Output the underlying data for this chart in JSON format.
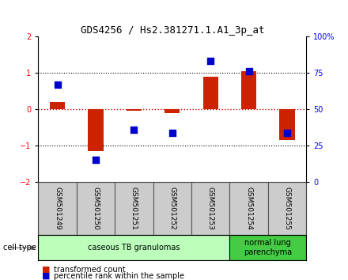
{
  "title": "GDS4256 / Hs2.381271.1.A1_3p_at",
  "samples": [
    "GSM501249",
    "GSM501250",
    "GSM501251",
    "GSM501252",
    "GSM501253",
    "GSM501254",
    "GSM501255"
  ],
  "transformed_counts": [
    0.2,
    -1.15,
    -0.05,
    -0.1,
    0.9,
    1.05,
    -0.85
  ],
  "percentile_ranks_pct": [
    67,
    15,
    36,
    34,
    83,
    76,
    34
  ],
  "left_ylim": [
    -2,
    2
  ],
  "right_ylim": [
    0,
    100
  ],
  "left_yticks": [
    -2,
    -1,
    0,
    1,
    2
  ],
  "right_yticks": [
    0,
    25,
    50,
    75,
    100
  ],
  "right_yticklabels": [
    "0",
    "25",
    "50",
    "75",
    "100%"
  ],
  "cell_types": [
    {
      "label": "caseous TB granulomas",
      "start": 0,
      "end": 5,
      "color": "#bbffbb"
    },
    {
      "label": "normal lung\nparenchyma",
      "start": 5,
      "end": 7,
      "color": "#44cc44"
    }
  ],
  "bar_color": "#cc2200",
  "dot_color": "#0000cc",
  "zero_line_color": "#cc0000",
  "dotted_line_color": "#000000",
  "label_bg_color": "#cccccc",
  "bg_color": "#ffffff",
  "bar_width": 0.4,
  "dot_size": 30
}
